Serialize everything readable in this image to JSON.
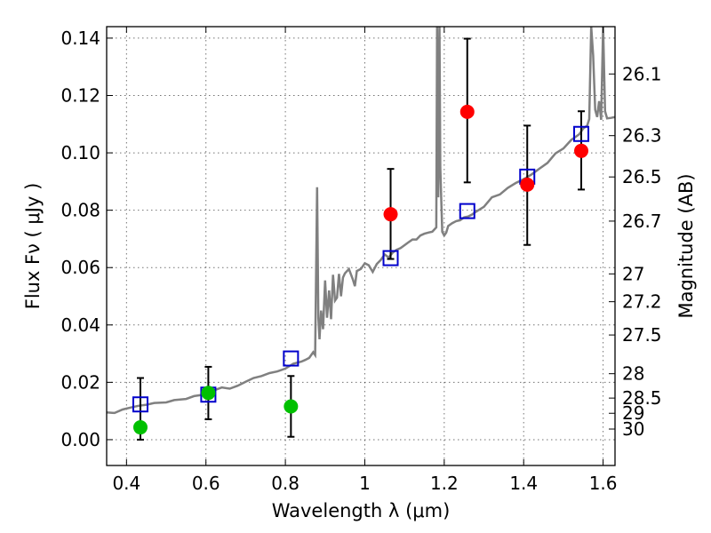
{
  "chart_data": {
    "type": "scatter",
    "xlabel": "Wavelength  λ (μm)",
    "ylabel": "Flux  Fν  ( μJy )",
    "y2label": "Magnitude (AB)",
    "xlim": [
      0.35,
      1.63
    ],
    "ylim": [
      -0.009,
      0.144
    ],
    "x_ticks": [
      0.4,
      0.6,
      0.8,
      1.0,
      1.2,
      1.4,
      1.6
    ],
    "x_tick_labels": [
      "0.4",
      "0.6",
      "0.8",
      "1",
      "1.2",
      "1.4",
      "1.6"
    ],
    "y_ticks": [
      0.0,
      0.02,
      0.04,
      0.06,
      0.08,
      0.1,
      0.12,
      0.14
    ],
    "y_tick_labels": [
      "0.00",
      "0.02",
      "0.04",
      "0.06",
      "0.08",
      "0.10",
      "0.12",
      "0.14"
    ],
    "y2_ticks": [
      {
        "label": "26.1",
        "flux": 0.1275
      },
      {
        "label": "26.3",
        "flux": 0.106
      },
      {
        "label": "26.5",
        "flux": 0.0916
      },
      {
        "label": "26.7",
        "flux": 0.0762
      },
      {
        "label": "27",
        "flux": 0.0578
      },
      {
        "label": "27.2",
        "flux": 0.0481
      },
      {
        "label": "27.5",
        "flux": 0.0365
      },
      {
        "label": "28",
        "flux": 0.023
      },
      {
        "label": "28.5",
        "flux": 0.0145
      },
      {
        "label": "29",
        "flux": 0.0092
      },
      {
        "label": "30",
        "flux": 0.0037
      }
    ],
    "grid": true,
    "series": [
      {
        "marker": "circle",
        "color": "#00c000",
        "points": [
          {
            "x": 0.435,
            "y": 0.0043,
            "yerr_low": 0.0043,
            "yerr_high": 0.0172
          },
          {
            "x": 0.606,
            "y": 0.0163,
            "yerr_low": 0.0092,
            "yerr_high": 0.0091
          },
          {
            "x": 0.814,
            "y": 0.0116,
            "yerr_low": 0.0106,
            "yerr_high": 0.0106
          }
        ]
      },
      {
        "marker": "circle",
        "color": "#ff0000",
        "points": [
          {
            "x": 1.065,
            "y": 0.0786,
            "yerr_low": 0.0156,
            "yerr_high": 0.0158
          },
          {
            "x": 1.258,
            "y": 0.1143,
            "yerr_low": 0.0246,
            "yerr_high": 0.0255
          },
          {
            "x": 1.409,
            "y": 0.0889,
            "yerr_low": 0.021,
            "yerr_high": 0.0206
          },
          {
            "x": 1.545,
            "y": 0.1007,
            "yerr_low": 0.0135,
            "yerr_high": 0.0138
          }
        ]
      },
      {
        "marker": "open-square",
        "color": "#0000cc",
        "points": [
          {
            "x": 0.435,
            "y": 0.0123
          },
          {
            "x": 0.606,
            "y": 0.0157
          },
          {
            "x": 0.814,
            "y": 0.0283
          },
          {
            "x": 1.065,
            "y": 0.0633
          },
          {
            "x": 1.258,
            "y": 0.0797
          },
          {
            "x": 1.409,
            "y": 0.0917
          },
          {
            "x": 1.545,
            "y": 0.1066
          }
        ]
      },
      {
        "marker": "line",
        "color": "#808080",
        "x": [
          0.35,
          0.37,
          0.39,
          0.41,
          0.43,
          0.45,
          0.47,
          0.5,
          0.52,
          0.55,
          0.57,
          0.6,
          0.62,
          0.64,
          0.66,
          0.68,
          0.7,
          0.72,
          0.74,
          0.76,
          0.78,
          0.8,
          0.82,
          0.84,
          0.85,
          0.86,
          0.87,
          0.875,
          0.88,
          0.883,
          0.886,
          0.89,
          0.895,
          0.9,
          0.905,
          0.91,
          0.915,
          0.92,
          0.925,
          0.93,
          0.935,
          0.94,
          0.945,
          0.95,
          0.96,
          0.97,
          0.975,
          0.98,
          0.99,
          1.0,
          1.01,
          1.02,
          1.03,
          1.04,
          1.05,
          1.06,
          1.07,
          1.08,
          1.09,
          1.1,
          1.11,
          1.12,
          1.13,
          1.14,
          1.15,
          1.16,
          1.17,
          1.18,
          1.182,
          1.185,
          1.188,
          1.19,
          1.195,
          1.2,
          1.205,
          1.21,
          1.22,
          1.23,
          1.24,
          1.25,
          1.26,
          1.27,
          1.28,
          1.3,
          1.32,
          1.34,
          1.36,
          1.38,
          1.4,
          1.42,
          1.44,
          1.46,
          1.48,
          1.5,
          1.52,
          1.54,
          1.55,
          1.56,
          1.565,
          1.57,
          1.575,
          1.58,
          1.585,
          1.59,
          1.595,
          1.6,
          1.605,
          1.61,
          1.62,
          1.63
        ],
        "y": [
          0.0095,
          0.0093,
          0.0105,
          0.0112,
          0.0118,
          0.0122,
          0.0128,
          0.013,
          0.0138,
          0.0142,
          0.0152,
          0.0158,
          0.0172,
          0.0182,
          0.0178,
          0.0188,
          0.0202,
          0.0215,
          0.0222,
          0.0232,
          0.0238,
          0.0248,
          0.0265,
          0.0272,
          0.0278,
          0.0285,
          0.0305,
          0.0295,
          0.088,
          0.0425,
          0.035,
          0.045,
          0.0385,
          0.0555,
          0.0425,
          0.052,
          0.042,
          0.0575,
          0.0485,
          0.0495,
          0.0578,
          0.05,
          0.0565,
          0.058,
          0.0595,
          0.0558,
          0.0535,
          0.0588,
          0.0595,
          0.0615,
          0.0608,
          0.0585,
          0.0612,
          0.0626,
          0.0646,
          0.0635,
          0.0652,
          0.0662,
          0.0668,
          0.0678,
          0.0688,
          0.0698,
          0.0698,
          0.0712,
          0.0718,
          0.0722,
          0.0725,
          0.074,
          0.144,
          0.0845,
          0.144,
          0.095,
          0.0725,
          0.0712,
          0.0722,
          0.0745,
          0.0755,
          0.0762,
          0.0765,
          0.0775,
          0.0778,
          0.0785,
          0.0795,
          0.0812,
          0.0845,
          0.0855,
          0.0878,
          0.0895,
          0.0908,
          0.0925,
          0.0945,
          0.0965,
          0.0998,
          0.1015,
          0.1045,
          0.1065,
          0.1085,
          0.1095,
          0.1118,
          0.144,
          0.134,
          0.115,
          0.1125,
          0.118,
          0.1115,
          0.144,
          0.1145,
          0.112,
          0.1122,
          0.1125
        ]
      }
    ]
  }
}
